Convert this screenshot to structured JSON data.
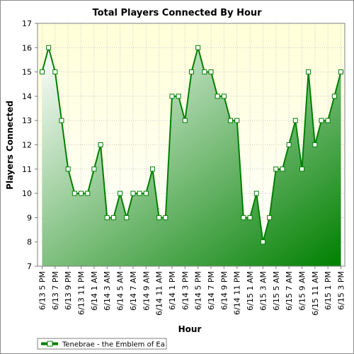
{
  "chart_data": {
    "type": "area",
    "title": "Total Players Connected By Hour",
    "xlabel": "Hour",
    "ylabel": "Players Connected",
    "ylim": [
      7,
      17
    ],
    "yticks": [
      7,
      8,
      9,
      10,
      11,
      12,
      13,
      14,
      15,
      16,
      17
    ],
    "grid": true,
    "legend_position": "bottom-left",
    "x_tick_labels": [
      "6/13 5 PM",
      "6/13 7 PM",
      "6/13 9 PM",
      "6/13 11 PM",
      "6/14 1 AM",
      "6/14 3 AM",
      "6/14 5 AM",
      "6/14 7 AM",
      "6/14 9 AM",
      "6/14 11 AM",
      "6/14 1 PM",
      "6/14 3 PM",
      "6/14 5 PM",
      "6/14 7 PM",
      "6/14 9 PM",
      "6/14 11 PM",
      "6/15 1 AM",
      "6/15 3 AM",
      "6/15 5 AM",
      "6/15 7 AM",
      "6/15 9 AM",
      "6/15 11 AM",
      "6/15 1 PM",
      "6/15 3 PM"
    ],
    "series": [
      {
        "name": "Tenebrae - the Emblem of Ea",
        "color": "#008000",
        "values": [
          15,
          16,
          15,
          13,
          11,
          10,
          10,
          10,
          11,
          12,
          9,
          9,
          10,
          9,
          10,
          10,
          10,
          11,
          9,
          9,
          14,
          14,
          13,
          15,
          16,
          15,
          15,
          14,
          14,
          13,
          13,
          9,
          9,
          10,
          8,
          9,
          11,
          11,
          12,
          13,
          11,
          15,
          12,
          13,
          13,
          14,
          15
        ]
      }
    ]
  },
  "colors": {
    "plot_background_top": "#ffffd8",
    "plot_background_bottom": "#ffffff",
    "area_fill_light": "#ffffff",
    "area_fill_dark": "#008000",
    "line": "#008000"
  }
}
